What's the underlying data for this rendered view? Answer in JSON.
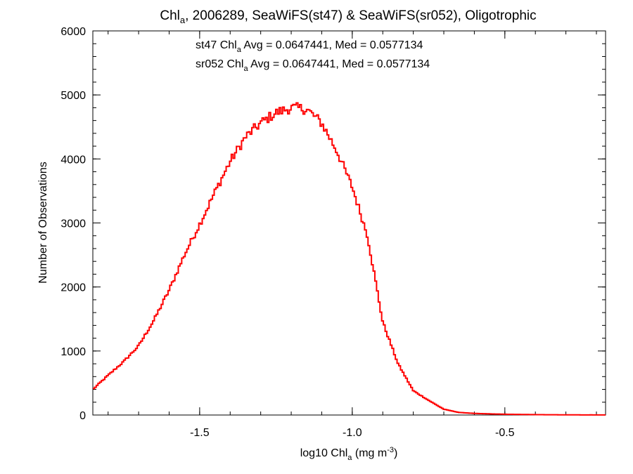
{
  "chart_data": {
    "type": "line",
    "title": {
      "pre": "Chl",
      "sub": "a",
      "post": ", 2006289, SeaWiFS(st47) & SeaWiFS(sr052), Oligotrophic"
    },
    "xlabel": {
      "pre": "log10 Chl",
      "sub": "a",
      "mid": " (mg m",
      "sup": "-3",
      "post": ")"
    },
    "ylabel": "Number of Observations",
    "xlim": [
      -1.85,
      -0.17
    ],
    "ylim": [
      0,
      6000
    ],
    "x_ticks": [
      -1.5,
      -1.0,
      -0.5
    ],
    "x_tick_labels": [
      "-1.5",
      "-1.0",
      "-0.5"
    ],
    "y_ticks": [
      0,
      1000,
      2000,
      3000,
      4000,
      5000,
      6000
    ],
    "y_tick_labels": [
      "0",
      "1000",
      "2000",
      "3000",
      "4000",
      "5000",
      "6000"
    ],
    "grid": false,
    "step": true,
    "annotations": [
      {
        "pre": "st47 Chl",
        "sub": "a",
        "post": " Avg = 0.0647441, Med = 0.0577134",
        "color": "#000000"
      },
      {
        "pre": "sr052 Chl",
        "sub": "a",
        "post": " Avg = 0.0647441, Med = 0.0577134",
        "color": "#ff0000"
      }
    ],
    "series": [
      {
        "color": "#ff0000",
        "x": [
          -1.85,
          -1.8,
          -1.75,
          -1.7,
          -1.65,
          -1.6,
          -1.55,
          -1.5,
          -1.45,
          -1.4,
          -1.35,
          -1.3,
          -1.25,
          -1.2,
          -1.15,
          -1.1,
          -1.05,
          -1.0,
          -0.95,
          -0.9,
          -0.85,
          -0.8,
          -0.75,
          -0.7,
          -0.65,
          -0.6,
          -0.55,
          -0.5,
          -0.45,
          -0.4,
          -0.35,
          -0.3,
          -0.25,
          -0.2,
          -0.17
        ],
        "values": [
          400,
          620,
          830,
          1080,
          1480,
          1950,
          2500,
          2980,
          3480,
          3960,
          4340,
          4560,
          4720,
          4800,
          4780,
          4560,
          4120,
          3560,
          2800,
          1450,
          800,
          380,
          230,
          90,
          40,
          25,
          18,
          12,
          9,
          6,
          4,
          3,
          2,
          2,
          1
        ]
      }
    ]
  }
}
